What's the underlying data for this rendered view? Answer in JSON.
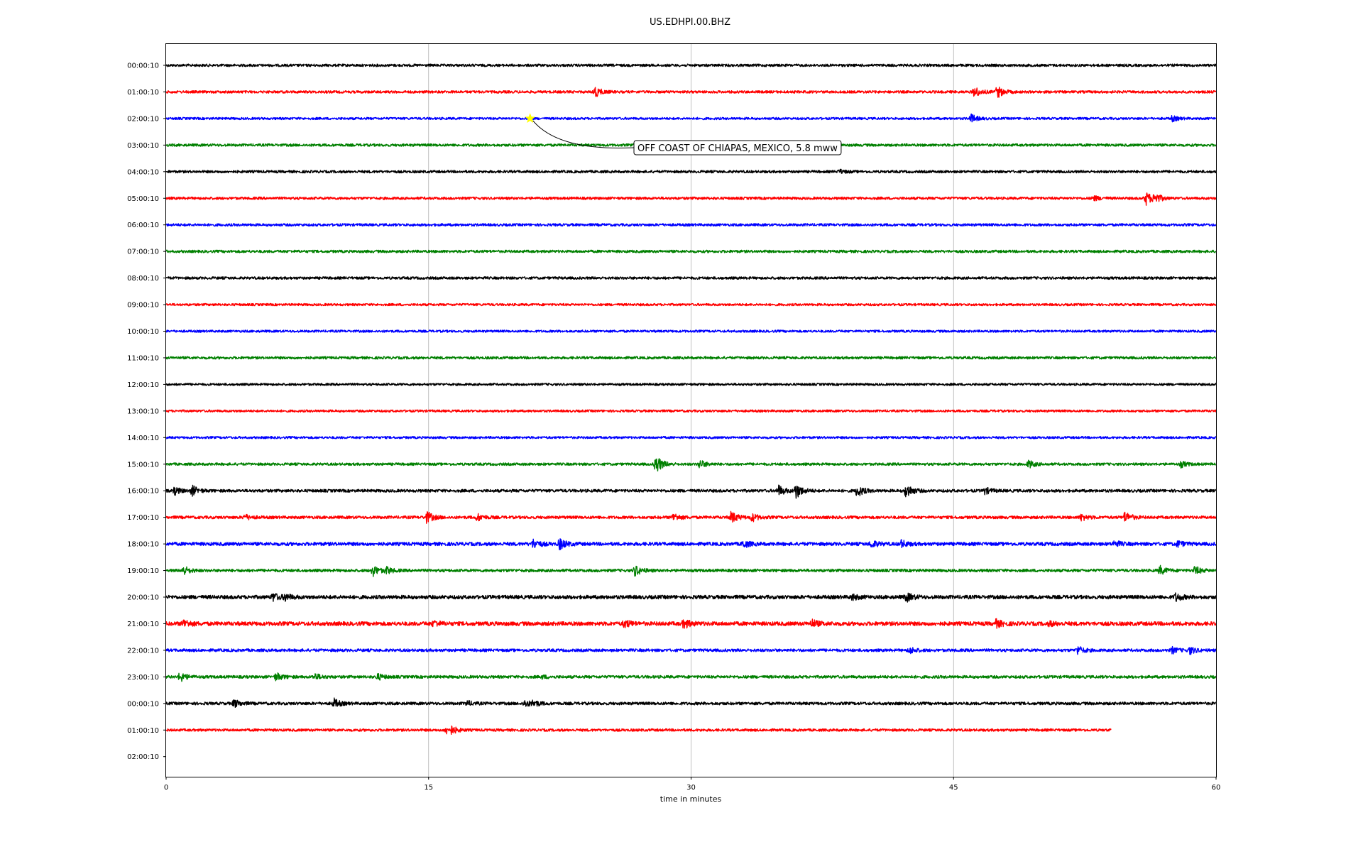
{
  "chart_data": {
    "type": "line",
    "title": "US.EDHPI.00.BHZ",
    "xlabel": "time in minutes",
    "ylabel": "",
    "xlim": [
      0,
      60
    ],
    "x_ticks": [
      0,
      15,
      30,
      45,
      60
    ],
    "grid": "vertical lines at x ticks",
    "colors": [
      "#000000",
      "#ff0000",
      "#0000ff",
      "#008000"
    ],
    "row_labels": [
      "00:00:10",
      "01:00:10",
      "02:00:10",
      "03:00:10",
      "04:00:10",
      "05:00:10",
      "06:00:10",
      "07:00:10",
      "08:00:10",
      "09:00:10",
      "10:00:10",
      "11:00:10",
      "12:00:10",
      "13:00:10",
      "14:00:10",
      "15:00:10",
      "16:00:10",
      "17:00:10",
      "18:00:10",
      "19:00:10",
      "20:00:10",
      "21:00:10",
      "22:00:10",
      "23:00:10",
      "00:00:10",
      "01:00:10",
      "02:00:10"
    ],
    "traces": [
      {
        "row": 0,
        "end_minute": 60,
        "noise": 0.45,
        "bursts": []
      },
      {
        "row": 1,
        "end_minute": 60,
        "noise": 0.45,
        "bursts": [
          [
            24.5,
            1.8
          ],
          [
            46.2,
            1.8
          ],
          [
            47.5,
            2.0
          ]
        ]
      },
      {
        "row": 2,
        "end_minute": 60,
        "noise": 0.4,
        "bursts": [
          [
            46.0,
            1.4
          ],
          [
            57.5,
            0.9
          ]
        ]
      },
      {
        "row": 3,
        "end_minute": 60,
        "noise": 0.45,
        "bursts": []
      },
      {
        "row": 4,
        "end_minute": 60,
        "noise": 0.45,
        "bursts": [
          [
            38.5,
            0.6
          ]
        ]
      },
      {
        "row": 5,
        "end_minute": 60,
        "noise": 0.45,
        "bursts": [
          [
            53.0,
            0.8
          ],
          [
            56.0,
            2.2
          ],
          [
            56.5,
            1.5
          ]
        ]
      },
      {
        "row": 6,
        "end_minute": 60,
        "noise": 0.45,
        "bursts": []
      },
      {
        "row": 7,
        "end_minute": 60,
        "noise": 0.45,
        "bursts": []
      },
      {
        "row": 8,
        "end_minute": 60,
        "noise": 0.45,
        "bursts": []
      },
      {
        "row": 9,
        "end_minute": 60,
        "noise": 0.4,
        "bursts": []
      },
      {
        "row": 10,
        "end_minute": 60,
        "noise": 0.4,
        "bursts": []
      },
      {
        "row": 11,
        "end_minute": 60,
        "noise": 0.45,
        "bursts": []
      },
      {
        "row": 12,
        "end_minute": 60,
        "noise": 0.4,
        "bursts": []
      },
      {
        "row": 13,
        "end_minute": 60,
        "noise": 0.4,
        "bursts": []
      },
      {
        "row": 14,
        "end_minute": 60,
        "noise": 0.4,
        "bursts": []
      },
      {
        "row": 15,
        "end_minute": 60,
        "noise": 0.45,
        "bursts": [
          [
            28.0,
            3.2
          ],
          [
            30.5,
            1.4
          ],
          [
            49.3,
            1.3
          ],
          [
            58.0,
            1.0
          ]
        ]
      },
      {
        "row": 16,
        "end_minute": 60,
        "noise": 0.5,
        "bursts": [
          [
            0.5,
            1.2
          ],
          [
            1.5,
            1.6
          ],
          [
            35.0,
            1.8
          ],
          [
            36.0,
            2.6
          ],
          [
            39.5,
            2.0
          ],
          [
            42.3,
            2.5
          ],
          [
            46.8,
            1.1
          ]
        ]
      },
      {
        "row": 17,
        "end_minute": 60,
        "noise": 0.5,
        "bursts": [
          [
            4.5,
            0.9
          ],
          [
            14.9,
            2.0
          ],
          [
            17.8,
            1.2
          ],
          [
            29.0,
            1.3
          ],
          [
            32.3,
            2.0
          ],
          [
            33.5,
            1.3
          ],
          [
            52.3,
            1.1
          ],
          [
            54.8,
            1.8
          ]
        ]
      },
      {
        "row": 18,
        "end_minute": 60,
        "noise": 0.6,
        "bursts": [
          [
            21.0,
            1.6
          ],
          [
            22.5,
            1.8
          ],
          [
            33.0,
            1.2
          ],
          [
            40.3,
            1.2
          ],
          [
            42.0,
            1.2
          ],
          [
            54.2,
            1.0
          ],
          [
            57.8,
            1.0
          ]
        ]
      },
      {
        "row": 19,
        "end_minute": 60,
        "noise": 0.5,
        "bursts": [
          [
            1.0,
            1.5
          ],
          [
            11.8,
            1.9
          ],
          [
            12.6,
            1.0
          ],
          [
            26.8,
            1.8
          ],
          [
            56.8,
            1.4
          ],
          [
            58.8,
            1.3
          ]
        ]
      },
      {
        "row": 20,
        "end_minute": 60,
        "noise": 0.65,
        "bursts": [
          [
            6.1,
            1.3
          ],
          [
            6.8,
            1.0
          ],
          [
            39.2,
            0.9
          ],
          [
            42.3,
            1.4
          ],
          [
            57.7,
            1.2
          ]
        ]
      },
      {
        "row": 21,
        "end_minute": 60,
        "noise": 0.7,
        "bursts": [
          [
            1.0,
            1.3
          ],
          [
            15.3,
            0.9
          ],
          [
            26.2,
            1.2
          ],
          [
            29.6,
            1.5
          ],
          [
            36.9,
            1.2
          ],
          [
            47.4,
            1.3
          ],
          [
            50.5,
            0.6
          ]
        ]
      },
      {
        "row": 22,
        "end_minute": 60,
        "noise": 0.5,
        "bursts": [
          [
            42.5,
            1.1
          ],
          [
            52.1,
            1.4
          ],
          [
            57.5,
            1.0
          ],
          [
            58.5,
            1.2
          ]
        ]
      },
      {
        "row": 23,
        "end_minute": 60,
        "noise": 0.5,
        "bursts": [
          [
            0.8,
            1.6
          ],
          [
            6.3,
            1.3
          ],
          [
            8.5,
            1.0
          ],
          [
            12.1,
            1.0
          ],
          [
            21.5,
            0.5
          ]
        ]
      },
      {
        "row": 24,
        "end_minute": 60,
        "noise": 0.5,
        "bursts": [
          [
            3.9,
            1.3
          ],
          [
            9.6,
            1.5
          ],
          [
            17.2,
            0.8
          ],
          [
            20.5,
            1.1
          ],
          [
            21.0,
            0.9
          ]
        ]
      },
      {
        "row": 25,
        "end_minute": 54,
        "noise": 0.45,
        "bursts": [
          [
            16.0,
            1.2
          ],
          [
            16.3,
            0.9
          ]
        ]
      }
    ],
    "event": {
      "label": "OFF COAST OF CHIAPAS, MEXICO, 5.8 mww",
      "row": 2,
      "minute": 20.8,
      "marker": "yellow star"
    }
  }
}
